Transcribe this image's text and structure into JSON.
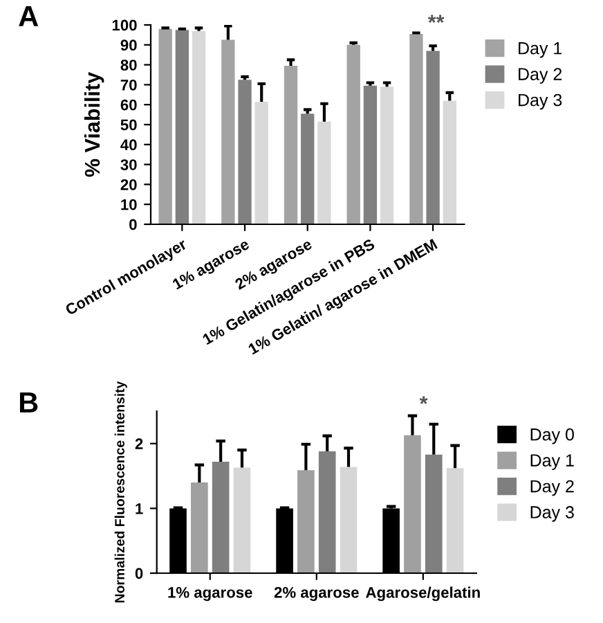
{
  "chart_data": [
    {
      "type": "bar",
      "title": "A",
      "ylabel": "% Viability",
      "categories": [
        "Control monolayer",
        "1% agarose",
        "2% agarose",
        "1% Gelatin/agarose in PBS",
        "1% Gelatin/ agarose in DMEM"
      ],
      "series": [
        {
          "name": "Day 1",
          "color": "#a3a3a3",
          "values": [
            98,
            92.5,
            79.5,
            90,
            95.5
          ],
          "errors": [
            [
              98,
              98.5
            ],
            [
              92.5,
              99.5
            ],
            [
              79.5,
              82.5
            ],
            [
              90,
              91
            ],
            [
              95.5,
              96
            ]
          ]
        },
        {
          "name": "Day 2",
          "color": "#808080",
          "values": [
            97.5,
            72.5,
            55.5,
            69.5,
            87
          ],
          "errors": [
            [
              97.5,
              98
            ],
            [
              72.5,
              74
            ],
            [
              55.5,
              57.5
            ],
            [
              69.5,
              71
            ],
            [
              87,
              89.5
            ]
          ]
        },
        {
          "name": "Day 3",
          "color": "#d9d9d9",
          "values": [
            97,
            61.5,
            51.5,
            69,
            62
          ],
          "errors": [
            [
              97,
              98.5
            ],
            [
              61.5,
              70.5
            ],
            [
              51.5,
              60.5
            ],
            [
              69,
              71
            ],
            [
              62,
              66
            ]
          ]
        }
      ],
      "ylim": [
        0,
        100
      ],
      "yticks": [
        0,
        10,
        20,
        30,
        40,
        50,
        60,
        70,
        80,
        90,
        100
      ],
      "grid": false,
      "legend": "right",
      "annotations": [
        "**"
      ]
    },
    {
      "type": "bar",
      "title": "B",
      "ylabel": "Normalized Fluorescence intensity",
      "categories": [
        "1% agarose",
        "2% agarose",
        "Agarose/gelatin"
      ],
      "series": [
        {
          "name": "Day 0",
          "color": "#000000",
          "values": [
            1.0,
            1.0,
            1.0
          ],
          "errors": [
            [
              1.0,
              1.01
            ],
            [
              1.0,
              1.01
            ],
            [
              1.0,
              1.03
            ]
          ]
        },
        {
          "name": "Day 1",
          "color": "#a0a0a0",
          "values": [
            1.4,
            1.59,
            2.13
          ],
          "errors": [
            [
              1.4,
              1.67
            ],
            [
              1.59,
              1.99
            ],
            [
              2.13,
              2.43
            ]
          ]
        },
        {
          "name": "Day 2",
          "color": "#7f7f7f",
          "values": [
            1.72,
            1.88,
            1.83
          ],
          "errors": [
            [
              1.72,
              2.04
            ],
            [
              1.88,
              2.12
            ],
            [
              1.83,
              2.3
            ]
          ]
        },
        {
          "name": "Day 3",
          "color": "#d6d6d6",
          "values": [
            1.63,
            1.64,
            1.62
          ],
          "errors": [
            [
              1.63,
              1.9
            ],
            [
              1.64,
              1.93
            ],
            [
              1.62,
              1.97
            ]
          ]
        }
      ],
      "ylim": [
        0,
        2.5
      ],
      "yticks": [
        0,
        1,
        2
      ],
      "grid": false,
      "legend": "right",
      "annotations": [
        "*"
      ]
    }
  ]
}
